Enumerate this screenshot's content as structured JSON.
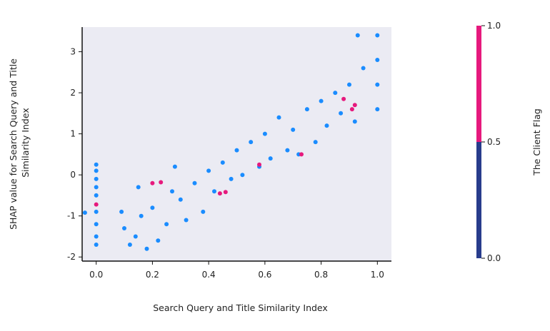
{
  "chart_data": {
    "type": "scatter",
    "title": "",
    "xlabel": "Search Query and Title Similarity Index",
    "ylabel": [
      "SHAP value for Search Query and Title",
      "Similarity Index"
    ],
    "xlim": [
      -0.05,
      1.05
    ],
    "ylim": [
      -2.1,
      3.6
    ],
    "xticks": [
      0.0,
      0.2,
      0.4,
      0.6,
      0.8,
      1.0
    ],
    "xtick_labels": [
      "0.0",
      "0.2",
      "0.4",
      "0.6",
      "0.8",
      "1.0"
    ],
    "yticks": [
      -2,
      -1,
      0,
      1,
      2,
      3
    ],
    "ytick_labels": [
      "-2",
      "-1",
      "0",
      "1",
      "2",
      "3"
    ],
    "grid": false,
    "background": "#ebebf3",
    "colorbar": {
      "label": "The Client Flag",
      "range": [
        0.0,
        1.0
      ],
      "ticks": [
        "0.0",
        "0.5",
        "1.0"
      ],
      "low_color": "#283c8c",
      "high_color": "#e6197d"
    },
    "series": [
      {
        "color": "#1a8cff",
        "points": [
          [
            0.0,
            0.25
          ],
          [
            0.0,
            0.1
          ],
          [
            0.0,
            -0.1
          ],
          [
            0.0,
            -0.3
          ],
          [
            0.0,
            -0.5
          ],
          [
            0.0,
            -0.9
          ],
          [
            0.0,
            -1.2
          ],
          [
            0.0,
            -1.5
          ],
          [
            0.0,
            -1.7
          ],
          [
            -0.04,
            -0.92
          ],
          [
            0.09,
            -0.9
          ],
          [
            0.1,
            -1.3
          ],
          [
            0.12,
            -1.7
          ],
          [
            0.14,
            -1.5
          ],
          [
            0.15,
            -0.3
          ],
          [
            0.16,
            -1.0
          ],
          [
            0.18,
            -1.8
          ],
          [
            0.2,
            -0.8
          ],
          [
            0.22,
            -1.6
          ],
          [
            0.25,
            -1.2
          ],
          [
            0.27,
            -0.4
          ],
          [
            0.28,
            0.2
          ],
          [
            0.3,
            -0.6
          ],
          [
            0.32,
            -1.1
          ],
          [
            0.35,
            -0.2
          ],
          [
            0.38,
            -0.9
          ],
          [
            0.4,
            0.1
          ],
          [
            0.42,
            -0.4
          ],
          [
            0.45,
            0.3
          ],
          [
            0.48,
            -0.1
          ],
          [
            0.5,
            0.6
          ],
          [
            0.52,
            0.0
          ],
          [
            0.55,
            0.8
          ],
          [
            0.58,
            0.2
          ],
          [
            0.6,
            1.0
          ],
          [
            0.62,
            0.4
          ],
          [
            0.65,
            1.4
          ],
          [
            0.68,
            0.6
          ],
          [
            0.7,
            1.1
          ],
          [
            0.72,
            0.5
          ],
          [
            0.75,
            1.6
          ],
          [
            0.78,
            0.8
          ],
          [
            0.8,
            1.8
          ],
          [
            0.82,
            1.2
          ],
          [
            0.85,
            2.0
          ],
          [
            0.87,
            1.5
          ],
          [
            0.9,
            2.2
          ],
          [
            0.92,
            1.3
          ],
          [
            0.95,
            2.6
          ],
          [
            0.93,
            3.4
          ],
          [
            1.0,
            3.4
          ],
          [
            1.0,
            2.8
          ],
          [
            1.0,
            2.2
          ],
          [
            1.0,
            1.6
          ]
        ]
      },
      {
        "color": "#e6197d",
        "points": [
          [
            0.0,
            -0.72
          ],
          [
            0.2,
            -0.2
          ],
          [
            0.23,
            -0.18
          ],
          [
            0.44,
            -0.45
          ],
          [
            0.46,
            -0.42
          ],
          [
            0.58,
            0.25
          ],
          [
            0.73,
            0.5
          ],
          [
            0.88,
            1.85
          ],
          [
            0.91,
            1.6
          ],
          [
            0.92,
            1.7
          ]
        ]
      }
    ]
  }
}
